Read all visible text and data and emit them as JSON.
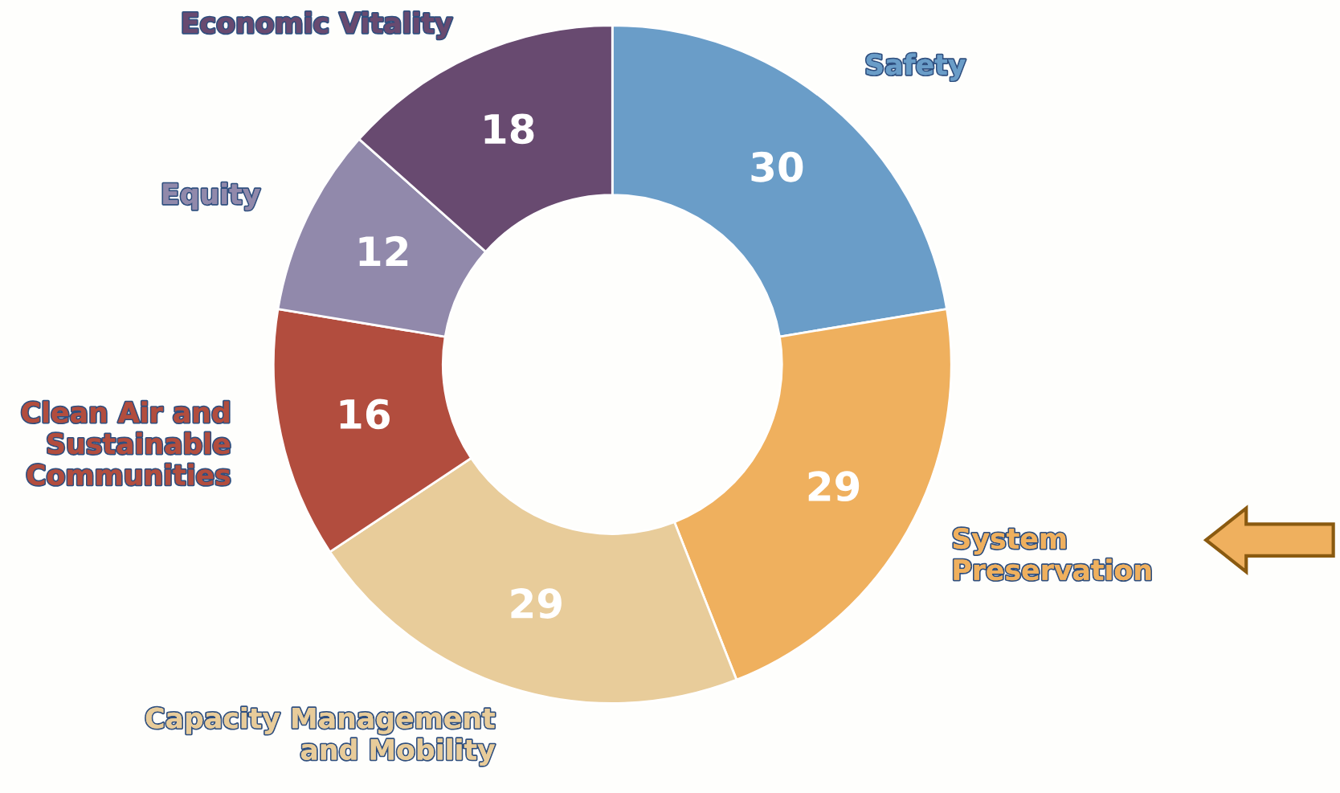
{
  "chart_data": {
    "type": "donut",
    "categories": [
      "Safety",
      "System\nPreservation",
      "Capacity Management\nand Mobility",
      "Clean Air and\nSustainable\nCommunities",
      "Equity",
      "Economic Vitality"
    ],
    "values": [
      30,
      29,
      29,
      16,
      12,
      18
    ],
    "colors": [
      "#6a9dc8",
      "#efb05e",
      "#e8cc9a",
      "#b24d3e",
      "#9189ab",
      "#684a70"
    ],
    "data_labels": true
  }
}
